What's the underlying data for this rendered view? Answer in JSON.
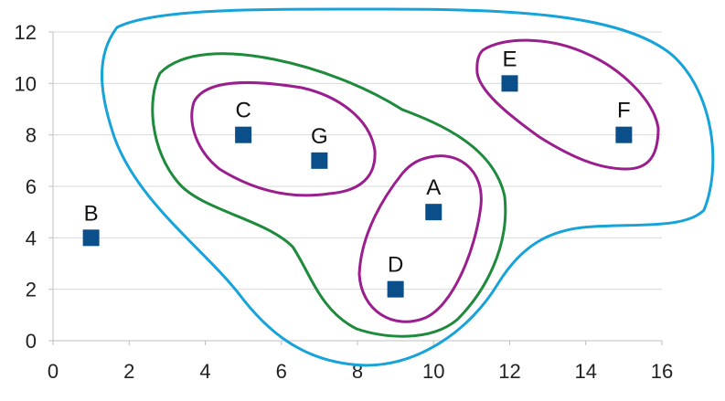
{
  "chart_data": {
    "type": "scatter",
    "xlim": [
      0,
      16
    ],
    "ylim": [
      0,
      12
    ],
    "x_ticks": [
      0,
      2,
      4,
      6,
      8,
      10,
      12,
      14,
      16
    ],
    "y_ticks": [
      0,
      2,
      4,
      6,
      8,
      10,
      12
    ],
    "grid": "horizontal",
    "marker": "square",
    "marker_color": "#0b4f8a",
    "points": [
      {
        "label": "A",
        "x": 10,
        "y": 5
      },
      {
        "label": "B",
        "x": 1,
        "y": 4
      },
      {
        "label": "C",
        "x": 5,
        "y": 8
      },
      {
        "label": "D",
        "x": 9,
        "y": 2
      },
      {
        "label": "E",
        "x": 12,
        "y": 10
      },
      {
        "label": "F",
        "x": 15,
        "y": 8
      },
      {
        "label": "G",
        "x": 7,
        "y": 7
      }
    ],
    "cluster_outlines": [
      {
        "color": "#16a3d9",
        "members": [
          "A",
          "C",
          "D",
          "E",
          "F",
          "G"
        ]
      },
      {
        "color": "#1e8a3c",
        "members": [
          "A",
          "C",
          "D",
          "G"
        ]
      },
      {
        "color": "#9a1e8e",
        "members": [
          "C",
          "G"
        ]
      },
      {
        "color": "#9a1e8e",
        "members": [
          "A",
          "D"
        ]
      },
      {
        "color": "#9a1e8e",
        "members": [
          "E",
          "F"
        ]
      }
    ]
  }
}
